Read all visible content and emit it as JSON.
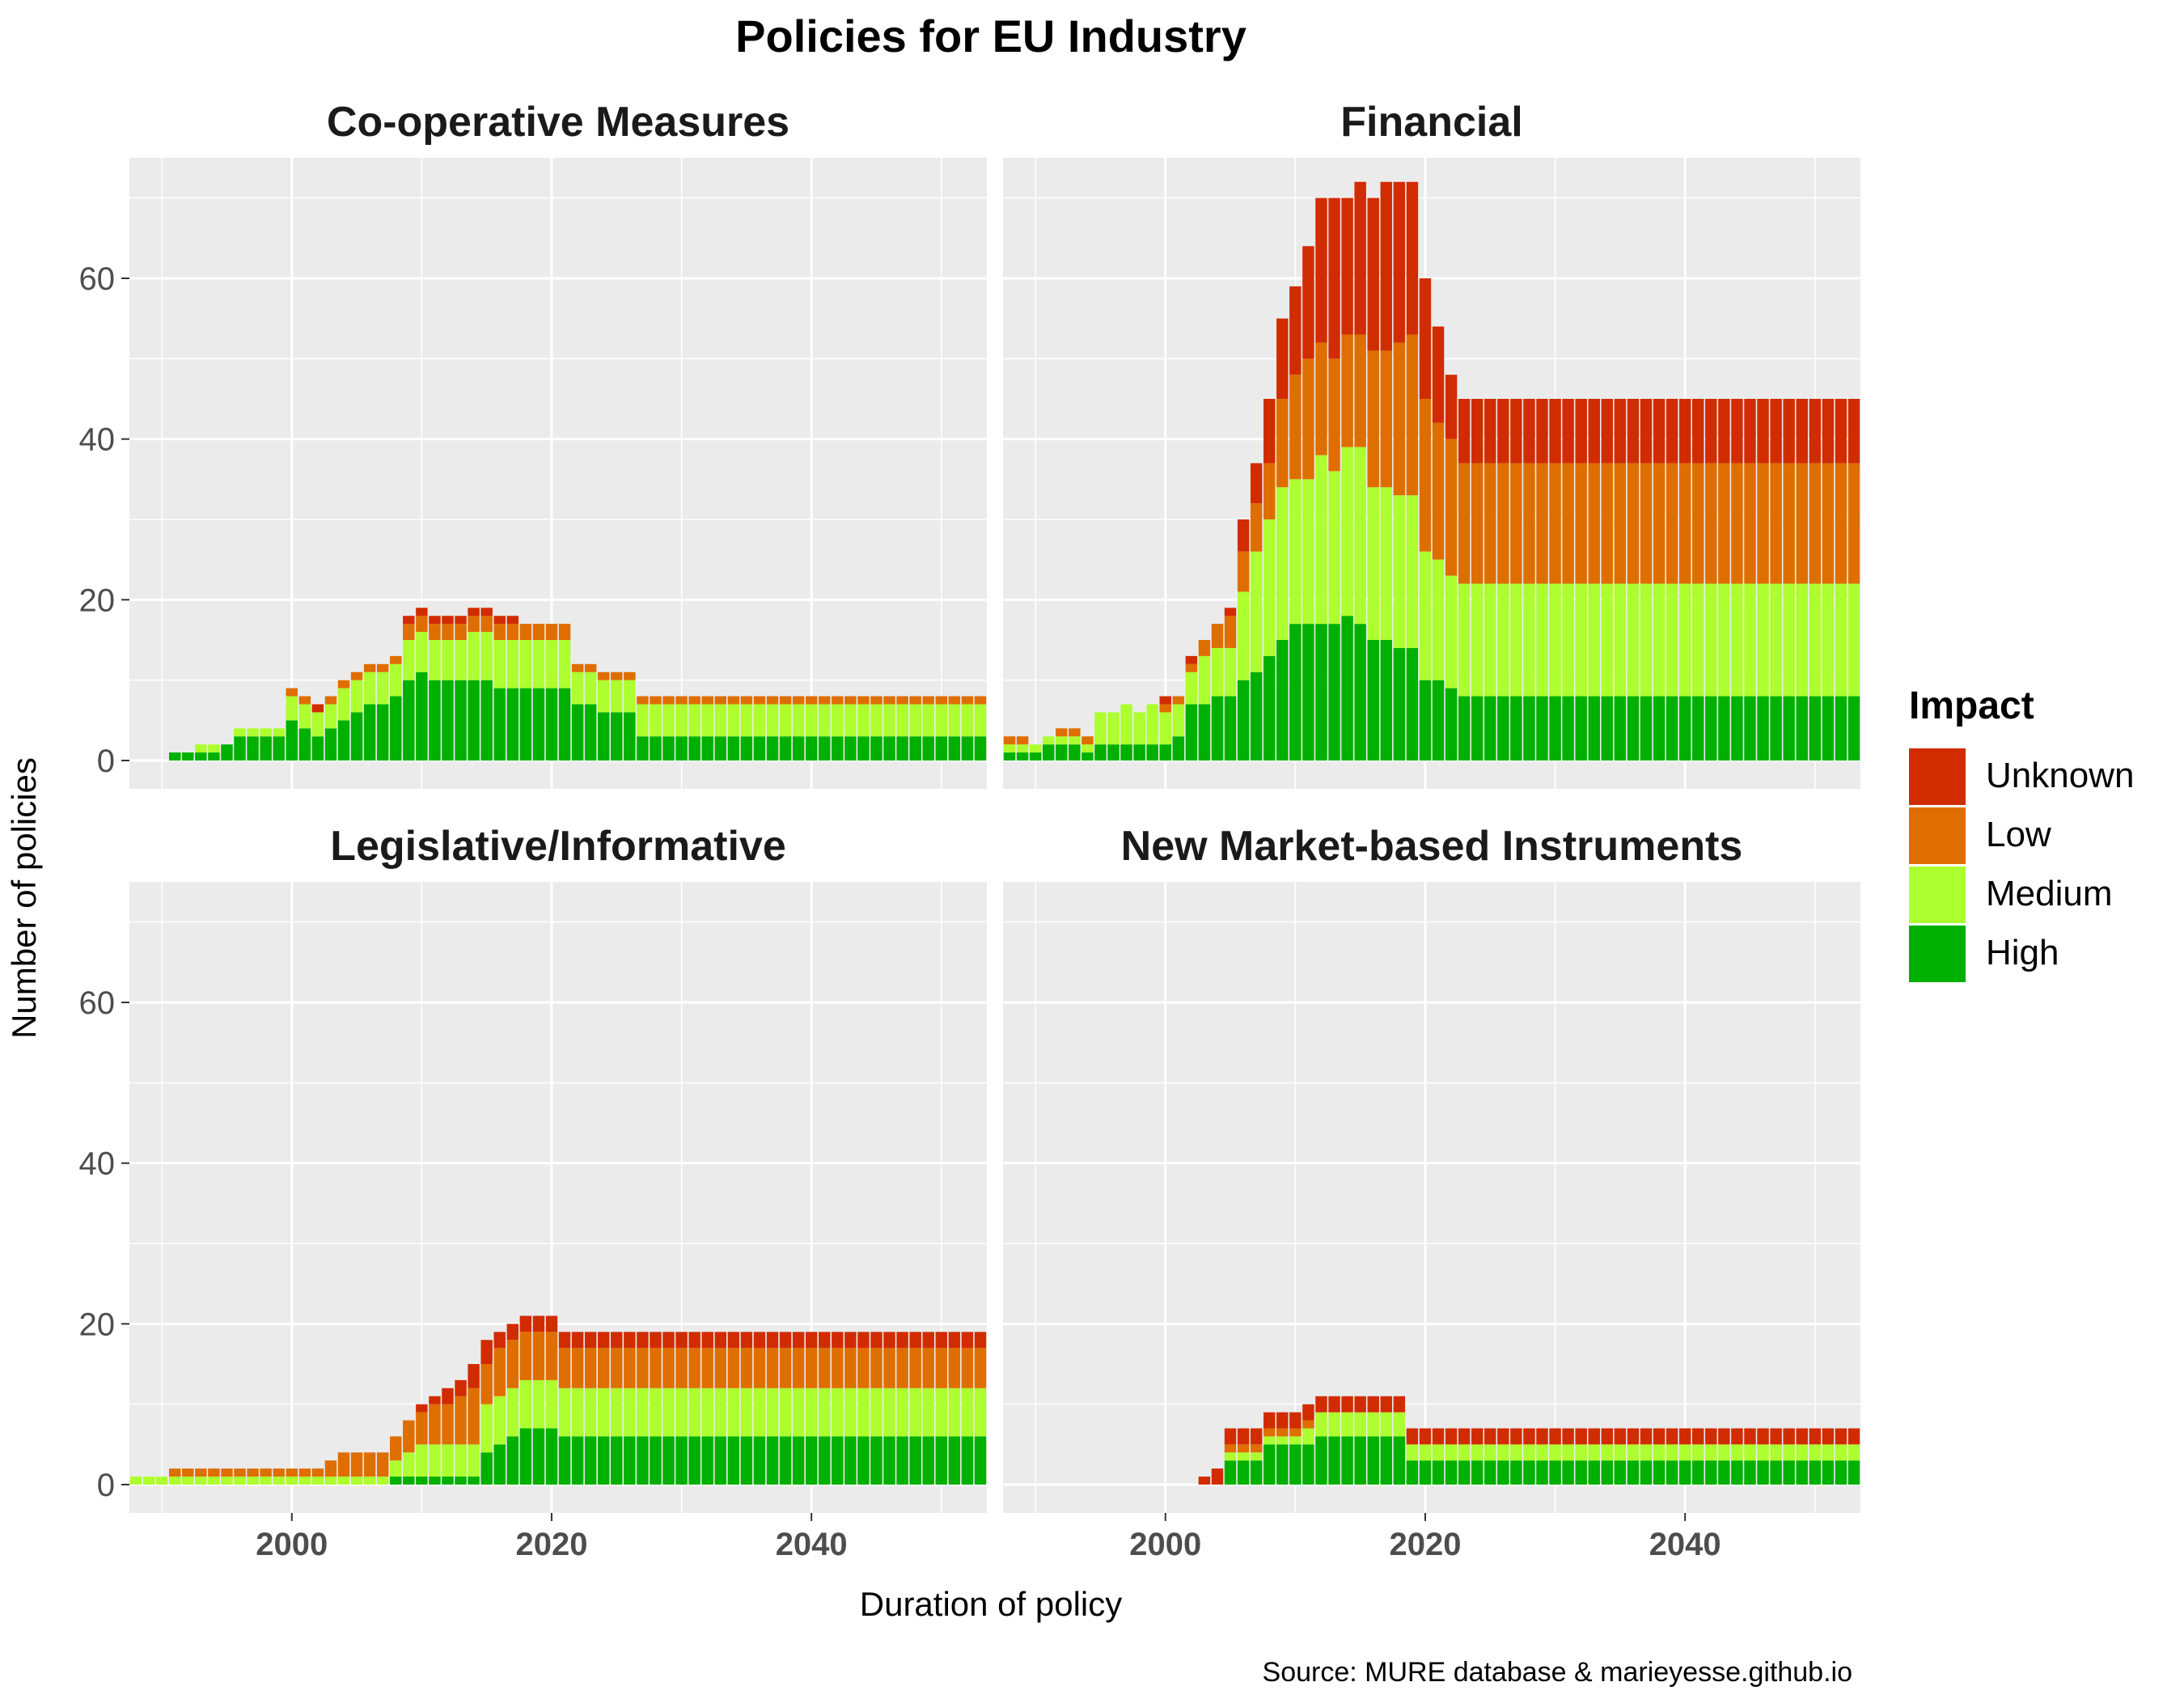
{
  "chart_data": {
    "type": "bar",
    "stacked": true,
    "title": "Policies for EU Industry",
    "xlabel": "Duration of policy",
    "ylabel": "Number of policies",
    "caption": "Source: MURE database & marieyesse.github.io",
    "xlim": [
      1987.5,
      2053.5
    ],
    "ylim": [
      0,
      75
    ],
    "x_ticks": [
      2000,
      2020,
      2040
    ],
    "y_ticks": [
      0,
      20,
      40,
      60
    ],
    "grid": true,
    "legend": {
      "title": "Impact",
      "position": "right",
      "entries": [
        "Unknown",
        "Low",
        "Medium",
        "High"
      ]
    },
    "stack_order": [
      "High",
      "Medium",
      "Low",
      "Unknown"
    ],
    "colors": {
      "High": "#00B000",
      "Medium": "#ADFF2F",
      "Low": "#DF6E00",
      "Unknown": "#D12C00",
      "panel_bg": "#EBEBEB",
      "grid": "#FFFFFF"
    },
    "panels": [
      {
        "name": "Co-operative Measures",
        "years": [
          1988,
          2053
        ],
        "values": {
          "High": [
            0,
            0,
            0,
            1,
            1,
            1,
            1,
            2,
            3,
            3,
            3,
            3,
            5,
            4,
            3,
            4,
            5,
            6,
            7,
            7,
            8,
            10,
            11,
            10,
            10,
            10,
            10,
            10,
            9,
            9,
            9,
            9,
            9,
            9,
            7,
            7,
            6,
            6,
            6,
            3,
            3,
            3,
            3,
            3,
            3,
            3,
            3,
            3,
            3,
            3,
            3,
            3,
            3,
            3,
            3,
            3,
            3,
            3,
            3,
            3,
            3,
            3,
            3,
            3,
            3,
            3
          ],
          "Medium": [
            0,
            0,
            0,
            0,
            0,
            1,
            1,
            0,
            1,
            1,
            1,
            1,
            3,
            3,
            3,
            3,
            4,
            4,
            4,
            4,
            4,
            5,
            5,
            5,
            5,
            5,
            6,
            6,
            6,
            6,
            6,
            6,
            6,
            6,
            4,
            4,
            4,
            4,
            4,
            4,
            4,
            4,
            4,
            4,
            4,
            4,
            4,
            4,
            4,
            4,
            4,
            4,
            4,
            4,
            4,
            4,
            4,
            4,
            4,
            4,
            4,
            4,
            4,
            4,
            4,
            4
          ],
          "Low": [
            0,
            0,
            0,
            0,
            0,
            0,
            0,
            0,
            0,
            0,
            0,
            0,
            1,
            1,
            0,
            1,
            1,
            1,
            1,
            1,
            1,
            2,
            2,
            2,
            2,
            2,
            2,
            2,
            2,
            2,
            2,
            2,
            2,
            2,
            1,
            1,
            1,
            1,
            1,
            1,
            1,
            1,
            1,
            1,
            1,
            1,
            1,
            1,
            1,
            1,
            1,
            1,
            1,
            1,
            1,
            1,
            1,
            1,
            1,
            1,
            1,
            1,
            1,
            1,
            1,
            1
          ],
          "Unknown": [
            0,
            0,
            0,
            0,
            0,
            0,
            0,
            0,
            0,
            0,
            0,
            0,
            0,
            0,
            1,
            0,
            0,
            0,
            0,
            0,
            0,
            1,
            1,
            1,
            1,
            1,
            1,
            1,
            1,
            1,
            0,
            0,
            0,
            0,
            0,
            0,
            0,
            0,
            0,
            0,
            0,
            0,
            0,
            0,
            0,
            0,
            0,
            0,
            0,
            0,
            0,
            0,
            0,
            0,
            0,
            0,
            0,
            0,
            0,
            0,
            0,
            0,
            0,
            0,
            0,
            0
          ]
        }
      },
      {
        "name": "Financial",
        "years": [
          1988,
          2053
        ],
        "values": {
          "High": [
            1,
            1,
            1,
            2,
            2,
            2,
            1,
            2,
            2,
            2,
            2,
            2,
            2,
            3,
            7,
            7,
            8,
            8,
            10,
            11,
            13,
            15,
            17,
            17,
            17,
            17,
            18,
            17,
            15,
            15,
            14,
            14,
            10,
            10,
            9,
            8,
            8,
            8,
            8,
            8,
            8,
            8,
            8,
            8,
            8,
            8,
            8,
            8,
            8,
            8,
            8,
            8,
            8,
            8,
            8,
            8,
            8,
            8,
            8,
            8,
            8,
            8,
            8,
            8,
            8,
            8
          ],
          "Medium": [
            1,
            1,
            1,
            1,
            1,
            1,
            1,
            4,
            4,
            5,
            4,
            5,
            4,
            4,
            4,
            6,
            6,
            6,
            11,
            15,
            17,
            19,
            18,
            18,
            21,
            19,
            21,
            22,
            19,
            19,
            19,
            19,
            16,
            15,
            14,
            14,
            14,
            14,
            14,
            14,
            14,
            14,
            14,
            14,
            14,
            14,
            14,
            14,
            14,
            14,
            14,
            14,
            14,
            14,
            14,
            14,
            14,
            14,
            14,
            14,
            14,
            14,
            14,
            14,
            14,
            14
          ],
          "Low": [
            1,
            1,
            0,
            0,
            1,
            1,
            1,
            0,
            0,
            0,
            0,
            0,
            1,
            1,
            1,
            2,
            3,
            4,
            5,
            6,
            7,
            11,
            13,
            15,
            14,
            14,
            14,
            14,
            17,
            17,
            19,
            20,
            19,
            17,
            17,
            15,
            15,
            15,
            15,
            15,
            15,
            15,
            15,
            15,
            15,
            15,
            15,
            15,
            15,
            15,
            15,
            15,
            15,
            15,
            15,
            15,
            15,
            15,
            15,
            15,
            15,
            15,
            15,
            15,
            15,
            15
          ],
          "Unknown": [
            0,
            0,
            0,
            0,
            0,
            0,
            0,
            0,
            0,
            0,
            0,
            0,
            1,
            0,
            1,
            0,
            0,
            1,
            4,
            5,
            8,
            10,
            11,
            14,
            18,
            20,
            17,
            19,
            19,
            21,
            20,
            19,
            15,
            12,
            8,
            8,
            8,
            8,
            8,
            8,
            8,
            8,
            8,
            8,
            8,
            8,
            8,
            8,
            8,
            8,
            8,
            8,
            8,
            8,
            8,
            8,
            8,
            8,
            8,
            8,
            8,
            8,
            8,
            8,
            8,
            8
          ]
        }
      },
      {
        "name": "Legislative/Informative",
        "years": [
          1988,
          2053
        ],
        "values": {
          "High": [
            0,
            0,
            0,
            0,
            0,
            0,
            0,
            0,
            0,
            0,
            0,
            0,
            0,
            0,
            0,
            0,
            0,
            0,
            0,
            0,
            1,
            1,
            1,
            1,
            1,
            1,
            1,
            4,
            5,
            6,
            7,
            7,
            7,
            6,
            6,
            6,
            6,
            6,
            6,
            6,
            6,
            6,
            6,
            6,
            6,
            6,
            6,
            6,
            6,
            6,
            6,
            6,
            6,
            6,
            6,
            6,
            6,
            6,
            6,
            6,
            6,
            6,
            6,
            6,
            6,
            6
          ],
          "Medium": [
            1,
            1,
            1,
            1,
            1,
            1,
            1,
            1,
            1,
            1,
            1,
            1,
            1,
            1,
            1,
            1,
            1,
            1,
            1,
            1,
            2,
            3,
            4,
            4,
            4,
            4,
            4,
            6,
            6,
            6,
            6,
            6,
            6,
            6,
            6,
            6,
            6,
            6,
            6,
            6,
            6,
            6,
            6,
            6,
            6,
            6,
            6,
            6,
            6,
            6,
            6,
            6,
            6,
            6,
            6,
            6,
            6,
            6,
            6,
            6,
            6,
            6,
            6,
            6,
            6,
            6
          ],
          "Low": [
            0,
            0,
            0,
            1,
            1,
            1,
            1,
            1,
            1,
            1,
            1,
            1,
            1,
            1,
            1,
            2,
            3,
            3,
            3,
            3,
            3,
            4,
            4,
            5,
            5,
            6,
            7,
            5,
            6,
            6,
            6,
            6,
            6,
            5,
            5,
            5,
            5,
            5,
            5,
            5,
            5,
            5,
            5,
            5,
            5,
            5,
            5,
            5,
            5,
            5,
            5,
            5,
            5,
            5,
            5,
            5,
            5,
            5,
            5,
            5,
            5,
            5,
            5,
            5,
            5,
            5
          ],
          "Unknown": [
            0,
            0,
            0,
            0,
            0,
            0,
            0,
            0,
            0,
            0,
            0,
            0,
            0,
            0,
            0,
            0,
            0,
            0,
            0,
            0,
            0,
            0,
            1,
            1,
            2,
            2,
            3,
            3,
            2,
            2,
            2,
            2,
            2,
            2,
            2,
            2,
            2,
            2,
            2,
            2,
            2,
            2,
            2,
            2,
            2,
            2,
            2,
            2,
            2,
            2,
            2,
            2,
            2,
            2,
            2,
            2,
            2,
            2,
            2,
            2,
            2,
            2,
            2,
            2,
            2,
            2
          ]
        }
      },
      {
        "name": "New Market-based Instruments",
        "years": [
          1988,
          2053
        ],
        "values": {
          "High": [
            0,
            0,
            0,
            0,
            0,
            0,
            0,
            0,
            0,
            0,
            0,
            0,
            0,
            0,
            0,
            0,
            0,
            3,
            3,
            3,
            5,
            5,
            5,
            5,
            6,
            6,
            6,
            6,
            6,
            6,
            6,
            3,
            3,
            3,
            3,
            3,
            3,
            3,
            3,
            3,
            3,
            3,
            3,
            3,
            3,
            3,
            3,
            3,
            3,
            3,
            3,
            3,
            3,
            3,
            3,
            3,
            3,
            3,
            3,
            3,
            3,
            3,
            3,
            3,
            3,
            3
          ],
          "Medium": [
            0,
            0,
            0,
            0,
            0,
            0,
            0,
            0,
            0,
            0,
            0,
            0,
            0,
            0,
            0,
            0,
            0,
            1,
            1,
            1,
            1,
            1,
            1,
            2,
            3,
            3,
            3,
            3,
            3,
            3,
            3,
            2,
            2,
            2,
            2,
            2,
            2,
            2,
            2,
            2,
            2,
            2,
            2,
            2,
            2,
            2,
            2,
            2,
            2,
            2,
            2,
            2,
            2,
            2,
            2,
            2,
            2,
            2,
            2,
            2,
            2,
            2,
            2,
            2,
            2,
            2
          ],
          "Low": [
            0,
            0,
            0,
            0,
            0,
            0,
            0,
            0,
            0,
            0,
            0,
            0,
            0,
            0,
            0,
            0,
            0,
            1,
            1,
            1,
            1,
            1,
            1,
            1,
            0,
            0,
            0,
            0,
            0,
            0,
            0,
            0,
            0,
            0,
            0,
            0,
            0,
            0,
            0,
            0,
            0,
            0,
            0,
            0,
            0,
            0,
            0,
            0,
            0,
            0,
            0,
            0,
            0,
            0,
            0,
            0,
            0,
            0,
            0,
            0,
            0,
            0,
            0,
            0,
            0,
            0
          ],
          "Unknown": [
            0,
            0,
            0,
            0,
            0,
            0,
            0,
            0,
            0,
            0,
            0,
            0,
            0,
            0,
            0,
            1,
            2,
            2,
            2,
            2,
            2,
            2,
            2,
            2,
            2,
            2,
            2,
            2,
            2,
            2,
            2,
            2,
            2,
            2,
            2,
            2,
            2,
            2,
            2,
            2,
            2,
            2,
            2,
            2,
            2,
            2,
            2,
            2,
            2,
            2,
            2,
            2,
            2,
            2,
            2,
            2,
            2,
            2,
            2,
            2,
            2,
            2,
            2,
            2,
            2,
            2
          ]
        }
      }
    ]
  }
}
